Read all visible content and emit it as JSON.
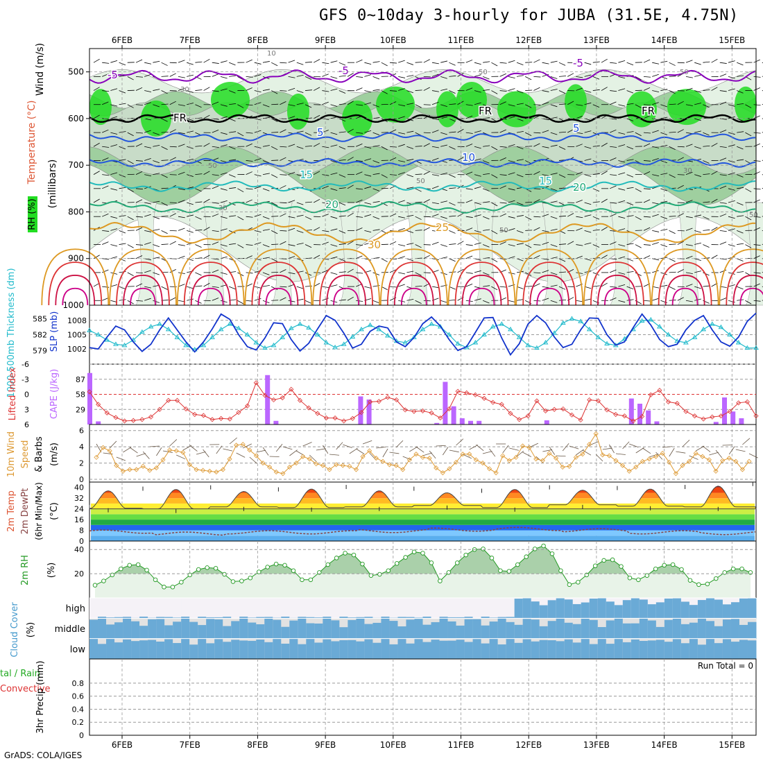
{
  "title": "GFS 0~10day 3-hourly for JUBA (31.5E, 4.75N)",
  "credit": "GrADS: COLA/IGES",
  "dates": [
    "6FEB",
    "7FEB",
    "8FEB",
    "9FEB",
    "10FEB",
    "11FEB",
    "12FEB",
    "13FEB",
    "14FEB",
    "15FEB"
  ],
  "colors": {
    "rh_dark": "#22dd22",
    "rh_mid": "#9fcf9f",
    "rh_light": "#e4f2e4",
    "temp_purple": "#8800bb",
    "temp_black": "#000000",
    "temp_blue": "#2255dd",
    "temp_teal": "#22bbbb",
    "temp_green": "#22aa77",
    "temp_orange": "#dd9922",
    "temp_red": "#dd3333",
    "slp": "#1133cc",
    "thickness": "#22bbcc",
    "cape": "#bb66ff",
    "li": "#dd3333",
    "wind_speed": "#dd9933",
    "rh2m": "#229922",
    "cloud": "#6aaad6",
    "cloud_clear": "#f5f2f7"
  },
  "panels": {
    "upper": {
      "ylabel_wind": "Wind (m/s)",
      "ylabel_temp": "Temperature (°C)",
      "ylabel_rh": "RH (%)",
      "ylabel_unit": "(millibars)",
      "contour_labels": [
        "-5",
        "-5",
        "-5",
        "FR",
        "FR",
        "FR",
        "5",
        "5",
        "10",
        "15",
        "15",
        "20",
        "20",
        "25",
        "30"
      ]
    },
    "slp": {
      "label_thick": "1000-500mb Thickness (dm)",
      "label_slp": "SLP (mb)"
    },
    "cape": {
      "label_li": "Lifted Index",
      "label_cape": "CAPE (J/kg)"
    },
    "wind10": {
      "label1": "10m Wind",
      "label2": "Speed",
      "label3": "& Barbs",
      "unit": "(m/s)"
    },
    "temp2m": {
      "label1": "2m Temp",
      "label2": "2m DewPt",
      "label3": "(6hr Min/Max)",
      "unit": "(°C)"
    },
    "rh2m": {
      "label": "2m RH",
      "unit": "(%)"
    },
    "cloud": {
      "label": "Cloud Cover",
      "unit": "(%)",
      "levels": [
        "high",
        "middle",
        "low"
      ]
    },
    "precip": {
      "label1": "3hr Precip (mm)",
      "label2": "tal / Rain",
      "label3": "Convective",
      "run_total": "Run Total = 0"
    }
  },
  "chart_data": [
    {
      "type": "heatmap",
      "name": "upper-air",
      "y_axis": "pressure (mb)",
      "y_ticks": [
        500,
        600,
        700,
        800,
        900,
        1000
      ],
      "ylim": [
        1000,
        450
      ],
      "x_ticks": [
        "6FEB",
        "7FEB",
        "8FEB",
        "9FEB",
        "10FEB",
        "11FEB",
        "12FEB",
        "13FEB",
        "14FEB",
        "15FEB"
      ],
      "rh_contour_labels": [
        "10",
        "30",
        "50",
        "50",
        "50",
        "50",
        "30",
        "30",
        "50",
        "50"
      ]
    },
    {
      "type": "line",
      "name": "slp-thickness",
      "ylim_slp": [
        1000,
        1010
      ],
      "slp_ticks": [
        1002,
        1005,
        1008
      ],
      "thick_ticks": [
        579,
        582,
        585
      ],
      "slp": [
        1002.3,
        1002.0,
        1004.5,
        1006.8,
        1006.0,
        1003.5,
        1001.5,
        1003.0,
        1006.0,
        1008.5,
        1006.0,
        1003.5,
        1001.4,
        1003.5,
        1006.2,
        1009.3,
        1008.2,
        1005.0,
        1002.5,
        1001.8,
        1004.3,
        1007.5,
        1007.3,
        1004.0,
        1001.6,
        1003.2,
        1006.2,
        1009.0,
        1008.0,
        1005.3,
        1002.2,
        1003.0,
        1005.7,
        1006.8,
        1006.4,
        1003.5,
        1002.5,
        1004.4,
        1007.3,
        1008.7,
        1006.8,
        1004.0,
        1001.7,
        1002.5,
        1005.5,
        1008.5,
        1008.6,
        1004.3,
        1000.8,
        1003.1,
        1007.2,
        1009.0,
        1007.5,
        1004.5,
        1002.3,
        1003.0,
        1006.0,
        1008.5,
        1008.4,
        1005.0,
        1002.8,
        1003.5,
        1006.5,
        1009.3,
        1007.0,
        1004.0,
        1002.5,
        1003.0,
        1006.0,
        1008.0,
        1009.0,
        1006.0,
        1003.5,
        1002.6,
        1004.5,
        1007.8,
        1009.5
      ],
      "thickness": [
        582.8,
        582.0,
        581.0,
        580.2,
        580.0,
        581.0,
        582.5,
        583.5,
        584.0,
        583.0,
        581.5,
        580.0,
        579.2,
        580.0,
        581.5,
        583.0,
        584.0,
        583.2,
        582.0,
        580.5,
        579.5,
        580.0,
        581.5,
        583.2,
        584.0,
        583.3,
        582.0,
        580.5,
        579.6,
        580.2,
        581.6,
        583.0,
        583.8,
        583.0,
        581.8,
        580.8,
        580.5,
        581.5,
        583.0,
        584.0,
        583.5,
        582.0,
        580.3,
        579.6,
        580.5,
        582.0,
        583.5,
        584.0,
        583.0,
        581.5,
        580.0,
        579.5,
        580.5,
        582.3,
        584.2,
        585.0,
        584.5,
        583.0,
        581.5,
        580.3,
        580.0,
        581.2,
        583.0,
        584.6,
        584.8,
        583.5,
        582.0,
        580.8,
        580.5,
        581.5,
        583.0,
        584.0,
        583.4,
        582.0,
        580.5,
        579.5,
        579.5
      ]
    },
    {
      "type": "bar",
      "name": "cape-li",
      "cape_ticks": [
        29,
        58,
        87
      ],
      "li_ticks": [
        6,
        3,
        0,
        -3,
        -6
      ],
      "cape_bars": [
        {
          "x": 0,
          "v": 99
        },
        {
          "x": 1,
          "v": 6
        },
        {
          "x": 21,
          "v": 95
        },
        {
          "x": 22,
          "v": 7
        },
        {
          "x": 32,
          "v": 54
        },
        {
          "x": 33,
          "v": 48
        },
        {
          "x": 41,
          "v": 3
        },
        {
          "x": 42,
          "v": 82
        },
        {
          "x": 43,
          "v": 35
        },
        {
          "x": 44,
          "v": 12
        },
        {
          "x": 45,
          "v": 7
        },
        {
          "x": 46,
          "v": 7
        },
        {
          "x": 54,
          "v": 8
        },
        {
          "x": 64,
          "v": 50
        },
        {
          "x": 65,
          "v": 40
        },
        {
          "x": 66,
          "v": 27
        },
        {
          "x": 67,
          "v": 6
        },
        {
          "x": 74,
          "v": 5
        },
        {
          "x": 75,
          "v": 52
        },
        {
          "x": 76,
          "v": 25
        },
        {
          "x": 77,
          "v": 12
        },
        {
          "x": 84,
          "v": 10
        },
        {
          "x": 85,
          "v": 23
        },
        {
          "x": 86,
          "v": 14
        },
        {
          "x": 95,
          "v": 23
        },
        {
          "x": 96,
          "v": 9
        }
      ],
      "li": [
        -0.5,
        2.0,
        3.7,
        4.6,
        5.3,
        5.2,
        5.0,
        4.5,
        3.0,
        1.2,
        1.2,
        2.9,
        4.0,
        4.2,
        5.0,
        4.8,
        4.9,
        3.6,
        2.3,
        -2.3,
        0.2,
        1.1,
        0.7,
        -1.0,
        1.2,
        2.7,
        3.8,
        4.7,
        4.7,
        5.3,
        4.8,
        3.6,
        1.5,
        1.4,
        0.6,
        1.1,
        3.1,
        3.4,
        3.3,
        3.7,
        4.7,
        2.9,
        -0.6,
        -0.3,
        0.1,
        0.8,
        1.6,
        2.0,
        3.8,
        5.0,
        4.3,
        1.3,
        3.3,
        3.0,
        2.9,
        4.1,
        5.1,
        1.1,
        1.3,
        3.1,
        4.0,
        4.3,
        5.3,
        4.4,
        0.1,
        -0.8,
        1.5,
        1.8,
        3.4,
        4.3,
        4.9,
        4.5,
        4.3,
        3.4,
        1.7,
        1.5,
        4.3
      ]
    },
    {
      "type": "line",
      "name": "wind10m",
      "ylim": [
        0,
        6
      ],
      "y_ticks": [
        0,
        2,
        4,
        6
      ],
      "speed": [
        2.7,
        3.9,
        3.5,
        1.7,
        1.0,
        1.2,
        1.2,
        1.6,
        1.1,
        1.4,
        2.4,
        3.6,
        3.5,
        3.3,
        1.8,
        1.2,
        1.1,
        1.0,
        0.9,
        1.2,
        2.5,
        4.2,
        4.3,
        3.6,
        2.9,
        2.0,
        1.5,
        0.9,
        0.7,
        1.5,
        2.0,
        2.8,
        2.5,
        1.9,
        1.7,
        1.2,
        1.8,
        1.7,
        1.6,
        1.2,
        2.8,
        3.5,
        2.6,
        2.2,
        1.8,
        1.7,
        1.2,
        2.4,
        3.1,
        2.7,
        2.6,
        1.4,
        0.8,
        1.3,
        2.1,
        3.1,
        3.1,
        2.4,
        2.0,
        1.3,
        0.8,
        2.9,
        2.3,
        2.7,
        4.1,
        3.9,
        2.5,
        2.3,
        3.2,
        2.6,
        1.5,
        1.6,
        2.7,
        3.1,
        4.3,
        5.6,
        3.0,
        2.9,
        2.3,
        1.7,
        1.0,
        1.5,
        2.2,
        2.5,
        2.8,
        3.2,
        2.1,
        0.7,
        1.7,
        2.2,
        3.2,
        2.8,
        2.4,
        1.0,
        2.3,
        2.6,
        2.2,
        1.2,
        2.2
      ]
    },
    {
      "type": "area",
      "name": "temp2m",
      "ylim": [
        0,
        44
      ],
      "y_ticks": [
        0,
        8,
        16,
        24,
        32,
        40
      ],
      "temp_max": [
        37.5,
        38.5,
        37.0,
        38.8,
        37.5,
        36.0,
        38.5,
        38.0,
        38.8,
        41.0
      ],
      "temp_min": [
        24.5,
        24.0,
        25.5,
        25.0,
        25.5,
        26.5,
        25.0,
        27.0,
        26.0,
        25.5
      ],
      "dewpoint": [
        7.0,
        5.5,
        6.5,
        6.5,
        7.5,
        8.5,
        9.0,
        8.0,
        6.5,
        6.0
      ]
    },
    {
      "type": "area",
      "name": "rh2m",
      "ylim": [
        0,
        45
      ],
      "y_ticks": [
        20,
        40
      ],
      "rh": [
        10.5,
        14.0,
        19.0,
        24.0,
        27.0,
        27.5,
        23.0,
        15.0,
        9.0,
        9.0,
        13.0,
        19.0,
        23.5,
        25.0,
        24.5,
        19.5,
        13.5,
        14.0,
        16.5,
        21.5,
        25.5,
        28.0,
        27.0,
        22.5,
        15.0,
        15.0,
        21.0,
        27.5,
        33.0,
        37.0,
        35.5,
        28.0,
        18.5,
        19.5,
        22.5,
        28.5,
        33.5,
        38.0,
        37.0,
        29.0,
        14.0,
        21.0,
        29.0,
        35.5,
        40.0,
        40.5,
        33.0,
        22.5,
        22.0,
        27.5,
        34.0,
        40.5,
        43.0,
        36.5,
        22.5,
        11.0,
        13.0,
        19.0,
        26.5,
        31.0,
        31.5,
        26.0,
        16.5,
        15.0,
        18.5,
        24.0,
        27.0,
        27.5,
        23.5,
        14.5,
        11.0,
        11.5,
        16.0,
        21.0,
        24.0,
        24.0,
        21.0
      ]
    },
    {
      "type": "heatmap",
      "name": "cloud-cover",
      "rows": [
        "high",
        "middle",
        "low"
      ]
    },
    {
      "type": "bar",
      "name": "precip3h",
      "ylim": [
        0,
        1
      ],
      "y_ticks": [
        0,
        0.2,
        0.4,
        0.6,
        0.8
      ],
      "values": []
    }
  ]
}
